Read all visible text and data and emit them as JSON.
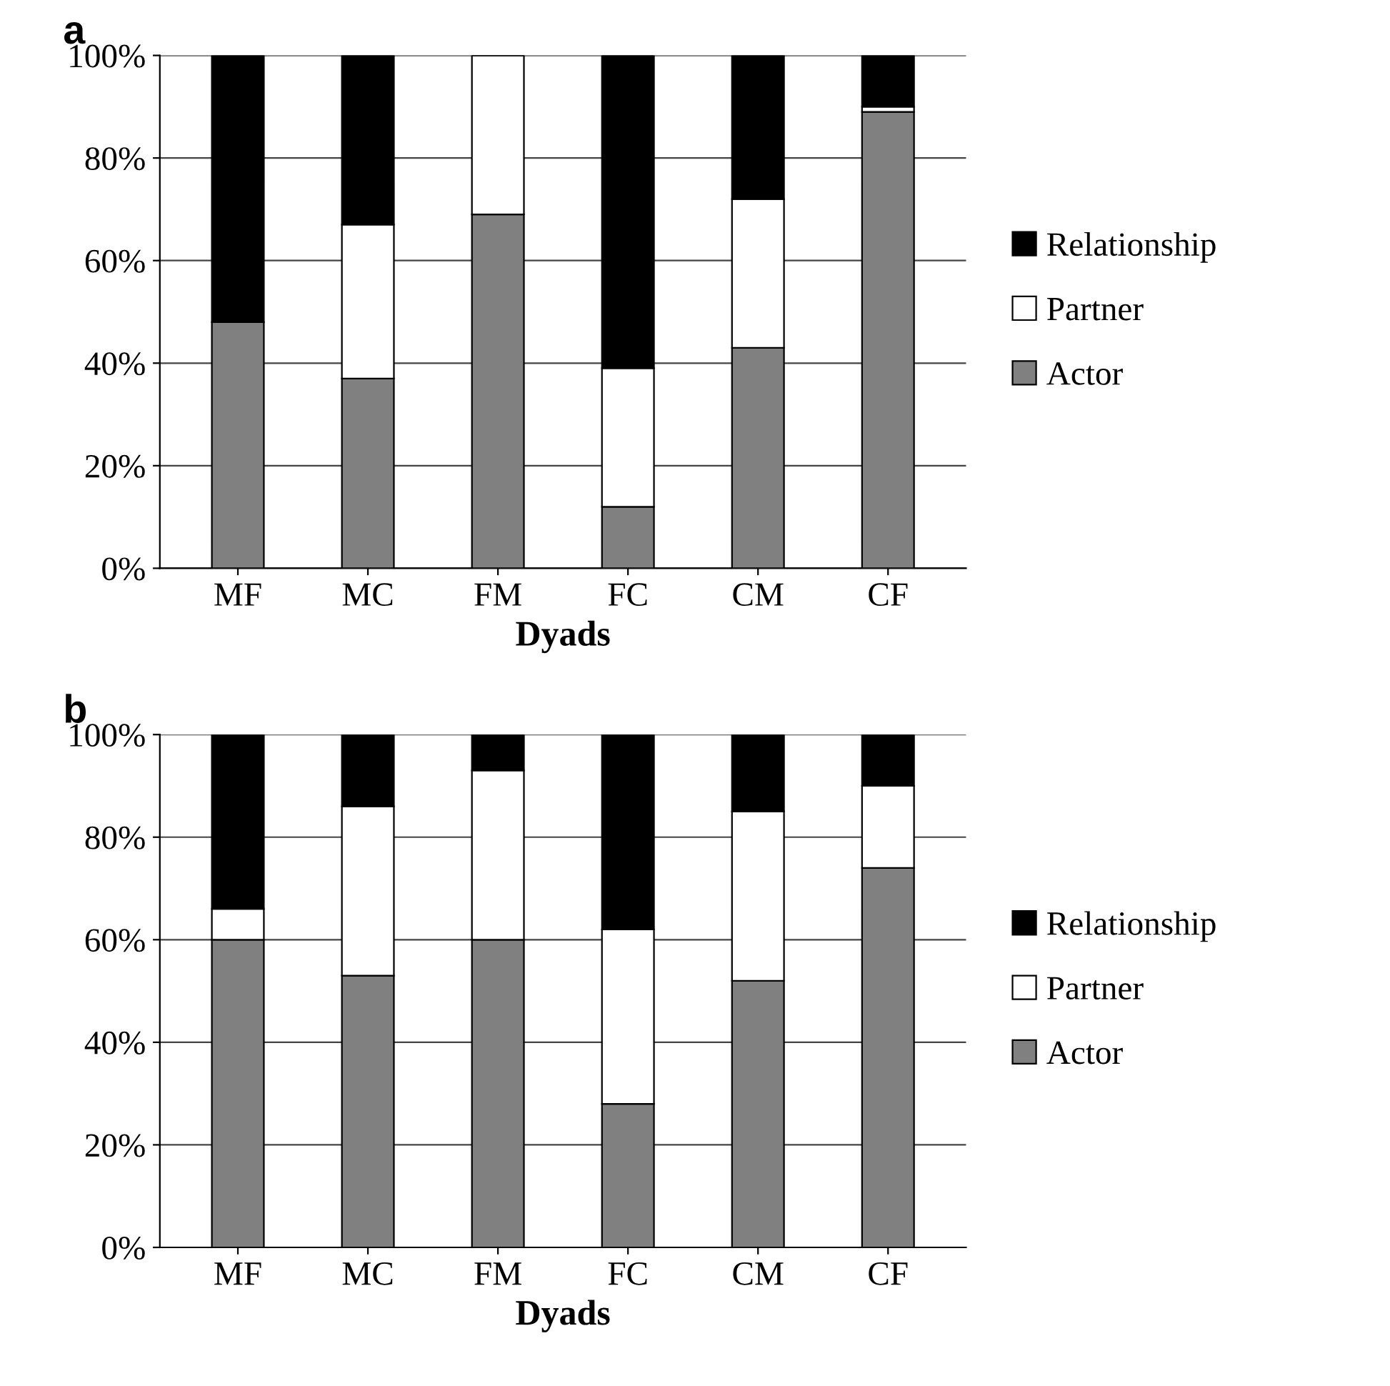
{
  "chart_data": [
    {
      "type": "bar",
      "title": "a",
      "xlabel": "Dyads",
      "categories": [
        "MF",
        "MC",
        "FM",
        "FC",
        "CM",
        "CF"
      ],
      "stacked": true,
      "ylim": [
        0,
        100
      ],
      "yticks": [
        {
          "value": 0,
          "label": "0%"
        },
        {
          "value": 20,
          "label": "20%"
        },
        {
          "value": 40,
          "label": "40%"
        },
        {
          "value": 60,
          "label": "60%"
        },
        {
          "value": 80,
          "label": "80%"
        },
        {
          "value": 100,
          "label": "100%"
        }
      ],
      "grid": "y",
      "legend": "right",
      "series": [
        {
          "name": "Actor",
          "color": "#808080",
          "values": [
            48,
            37,
            69,
            12,
            43,
            89
          ]
        },
        {
          "name": "Partner",
          "color": "#ffffff",
          "values": [
            0,
            30,
            31,
            27,
            29,
            1
          ]
        },
        {
          "name": "Relationship",
          "color": "#000000",
          "values": [
            52,
            33,
            0,
            61,
            28,
            10
          ]
        }
      ]
    },
    {
      "type": "bar",
      "title": "b",
      "xlabel": "Dyads",
      "categories": [
        "MF",
        "MC",
        "FM",
        "FC",
        "CM",
        "CF"
      ],
      "stacked": true,
      "ylim": [
        0,
        100
      ],
      "yticks": [
        {
          "value": 0,
          "label": "0%"
        },
        {
          "value": 20,
          "label": "20%"
        },
        {
          "value": 40,
          "label": "40%"
        },
        {
          "value": 60,
          "label": "60%"
        },
        {
          "value": 80,
          "label": "80%"
        },
        {
          "value": 100,
          "label": "100%"
        }
      ],
      "grid": "y",
      "legend": "right",
      "series": [
        {
          "name": "Actor",
          "color": "#808080",
          "values": [
            60,
            53,
            60,
            28,
            52,
            74
          ]
        },
        {
          "name": "Partner",
          "color": "#ffffff",
          "values": [
            6,
            33,
            33,
            34,
            33,
            16
          ]
        },
        {
          "name": "Relationship",
          "color": "#000000",
          "values": [
            34,
            14,
            7,
            38,
            15,
            10
          ]
        }
      ]
    }
  ]
}
